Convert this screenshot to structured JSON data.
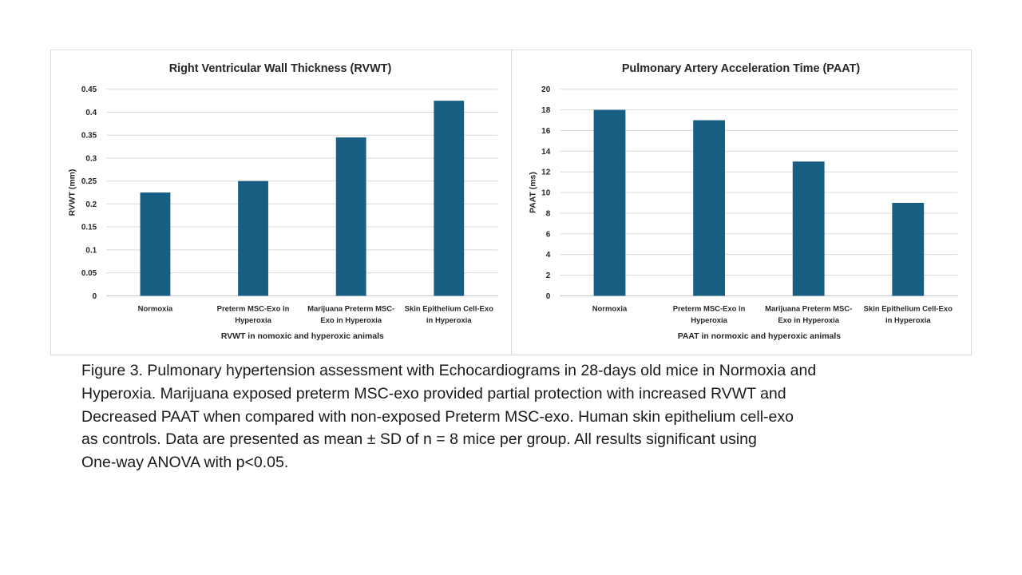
{
  "chart_data": [
    {
      "type": "bar",
      "title": "Right Ventricular Wall Thickness (RVWT)",
      "xlabel": "RVWT in nomoxic and hyperoxic animals",
      "ylabel": "RVWT (mm)",
      "categories": [
        [
          "Normoxia"
        ],
        [
          "Preterm MSC-Exo in",
          "Hyperoxia"
        ],
        [
          "Marijuana Preterm MSC-",
          "Exo  in Hyperoxia"
        ],
        [
          "Skin Epithelium Cell-Exo",
          "in Hyperoxia"
        ]
      ],
      "values": [
        0.225,
        0.25,
        0.345,
        0.425
      ],
      "ylim": [
        0,
        0.45
      ],
      "yticks": [
        "0",
        "0.05",
        "0.1",
        "0.15",
        "0.2",
        "0.25",
        "0.3",
        "0.35",
        "0.4",
        "0.45"
      ],
      "grid": true,
      "bar_color": "#175e82"
    },
    {
      "type": "bar",
      "title": "Pulmonary Artery Acceleration Time (PAAT)",
      "xlabel": "PAAT in normoxic and hyperoxic animals",
      "ylabel": "PAAT (ms)",
      "categories": [
        [
          "Normoxia"
        ],
        [
          "Preterm MSC-Exo in",
          "Hyperoxia"
        ],
        [
          "Marijuana Preterm MSC-",
          "Exo  in Hyperoxia"
        ],
        [
          "Skin Epithelium Cell-Exo",
          "in Hyperoxia"
        ]
      ],
      "values": [
        18,
        17,
        13,
        9
      ],
      "ylim": [
        0,
        20
      ],
      "yticks": [
        "0",
        "2",
        "4",
        "6",
        "8",
        "10",
        "12",
        "14",
        "16",
        "18",
        "20"
      ],
      "grid": true,
      "bar_color": "#175e82"
    }
  ],
  "caption": {
    "lines": [
      "Figure 3. Pulmonary hypertension assessment with Echocardiograms in 28-days old mice in Normoxia and",
      "Hyperoxia. Marijuana exposed preterm MSC-exo provided partial protection with increased RVWT and",
      "Decreased PAAT when compared with non-exposed Preterm MSC-exo. Human skin epithelium cell-exo",
      "as controls.  Data are presented as mean ± SD of n = 8 mice per group.  All results significant using",
      "One-way ANOVA with p<0.05."
    ]
  }
}
